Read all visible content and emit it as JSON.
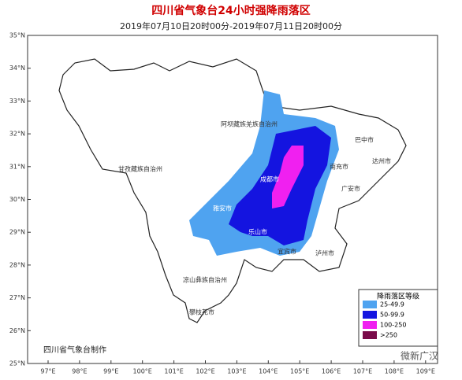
{
  "header": {
    "title": "四川省气象台24小时强降雨落区",
    "subtitle": "2019年07月10日20时00分-2019年07月11日20时00分"
  },
  "axes": {
    "lat_labels": [
      "35°N",
      "34°N",
      "33°N",
      "32°N",
      "31°N",
      "30°N",
      "29°N",
      "28°N",
      "27°N",
      "26°N",
      "25°N"
    ],
    "lon_labels": [
      "97°E",
      "98°E",
      "99°E",
      "100°E",
      "101°E",
      "102°E",
      "103°E",
      "104°E",
      "105°E",
      "106°E",
      "107°E",
      "108°E",
      "109°E"
    ]
  },
  "regions": [
    "阿坝藏族羌族自治州",
    "甘孜藏族自治州",
    "成都市",
    "雅安市",
    "乐山市",
    "凉山彝族自治州",
    "攀枝花市",
    "宜宾市",
    "泸州市",
    "南充市",
    "巴中市",
    "达州市",
    "广安市"
  ],
  "legend": {
    "title": "降雨落区等级",
    "items": [
      {
        "label": "25-49.9",
        "color": "#4fa3f0"
      },
      {
        "label": "50-99.9",
        "color": "#1414e0"
      },
      {
        "label": "100-250",
        "color": "#f020f0"
      },
      {
        "label": ">250",
        "color": "#7a0a4a"
      }
    ]
  },
  "footer": "四川省气象台制作",
  "watermark": "微新广汉"
}
